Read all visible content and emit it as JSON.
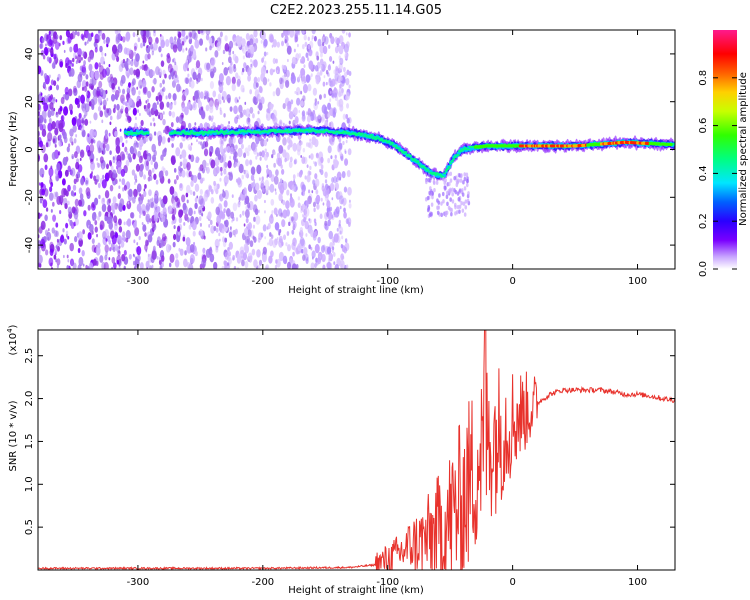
{
  "title": "C2E2.2023.255.11.14.G05",
  "colors": {
    "spectrogram_low": "#7a00ff",
    "spectrogram_mid": "#00ff60",
    "spectrogram_high": "#ff0000",
    "snr_line": "#e8322c"
  },
  "chart_data": [
    {
      "type": "heatmap",
      "xlabel": "Height of straight line (km)",
      "ylabel": "Frequency (Hz)",
      "xlim": [
        -380,
        130
      ],
      "ylim": [
        -50,
        50
      ],
      "xticks": [
        -300,
        -200,
        -100,
        0,
        100
      ],
      "yticks": [
        -40,
        -20,
        0,
        20,
        40
      ],
      "colorbar": {
        "label": "Normalized spectral amplitude",
        "range": [
          0,
          1
        ],
        "ticks": [
          "0.0",
          "0.2",
          "0.4",
          "0.6",
          "0.8"
        ],
        "colormap": "rainbow"
      },
      "grid": false,
      "ridge": {
        "description": "main frequency ridge (x km → Hz)",
        "x": [
          -310,
          -250,
          -200,
          -160,
          -130,
          -110,
          -95,
          -80,
          -65,
          -55,
          -48,
          -40,
          -30,
          -20,
          0,
          50,
          90,
          130
        ],
        "y": [
          7,
          7,
          7.5,
          8,
          7,
          5,
          2,
          -4,
          -10,
          -11,
          -4,
          0,
          1,
          1.5,
          1.5,
          1.5,
          3,
          2
        ]
      }
    },
    {
      "type": "line",
      "xlabel": "Height of straight line (km)",
      "ylabel": "SNR (10 * v/v)",
      "yscale_label": "(x10",
      "yscale_exp": "4",
      "yscale_close": ")",
      "xlim": [
        -380,
        130
      ],
      "ylim": [
        0,
        2.8
      ],
      "xticks": [
        -300,
        -200,
        -100,
        0,
        100
      ],
      "yticks": [
        0.5,
        1.0,
        1.5,
        2.0,
        2.5
      ],
      "grid": false,
      "series": [
        {
          "x": [
            -380,
            -300,
            -200,
            -130,
            -110,
            -100,
            -90,
            -80,
            -70,
            -60,
            -50,
            -40,
            -35,
            -30,
            -25,
            -20,
            -15,
            -10,
            -5,
            0,
            10,
            20,
            30,
            40,
            50,
            60,
            70,
            80,
            90,
            100,
            110,
            120,
            130
          ],
          "y": [
            0.02,
            0.02,
            0.02,
            0.03,
            0.06,
            0.12,
            0.2,
            0.3,
            0.35,
            0.45,
            0.6,
            0.8,
            1.0,
            1.2,
            1.4,
            1.5,
            1.55,
            1.6,
            1.7,
            1.75,
            1.85,
            1.95,
            2.05,
            2.1,
            2.1,
            2.1,
            2.1,
            2.08,
            2.05,
            2.05,
            2.03,
            2.0,
            1.98
          ]
        }
      ]
    }
  ]
}
